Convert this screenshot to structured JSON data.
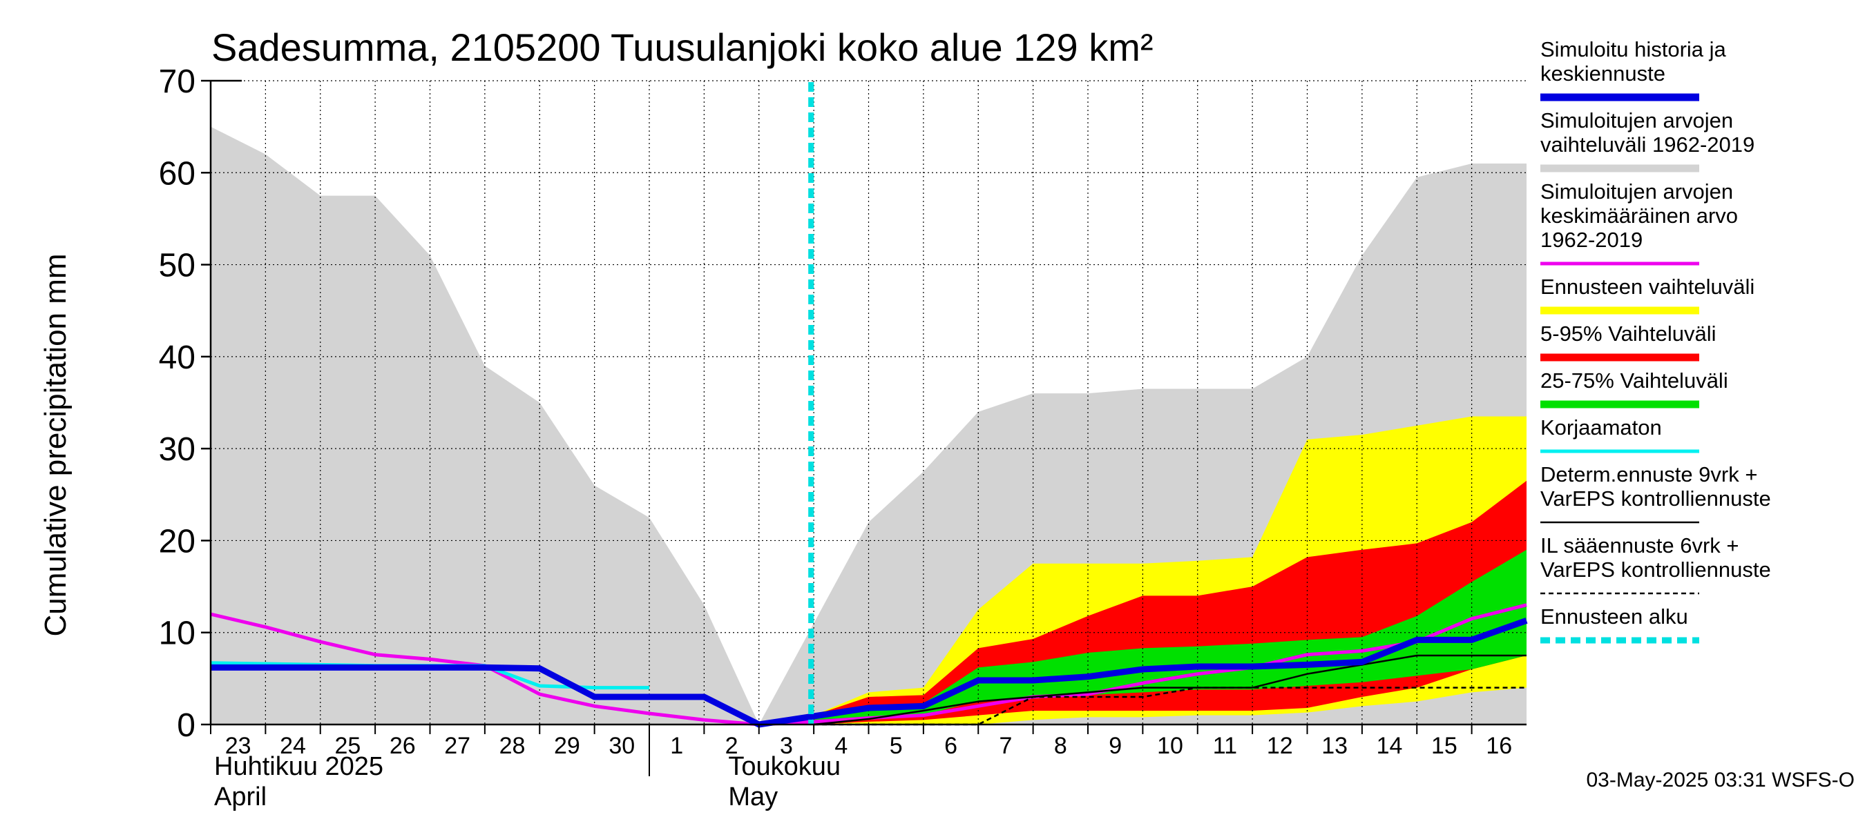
{
  "chart_data": {
    "type": "area",
    "title": "Sadesumma, 2105200 Tuusulanjoki koko alue 129 km²",
    "ylabel": "Cumulative precipitation   mm",
    "ylim": [
      0,
      70
    ],
    "yticks": [
      0,
      10,
      20,
      30,
      40,
      50,
      60,
      70
    ],
    "x_tick_labels": [
      "23",
      "24",
      "25",
      "26",
      "27",
      "28",
      "29",
      "30",
      "1",
      "2",
      "3",
      "4",
      "5",
      "6",
      "7",
      "8",
      "9",
      "10",
      "11",
      "12",
      "13",
      "14",
      "15",
      "16"
    ],
    "month_labels": [
      {
        "line1": "Huhtikuu  2025",
        "line2": "April"
      },
      {
        "line1": "Toukokuu",
        "line2": "May"
      }
    ],
    "forecast_start_day": 10.95,
    "footer": "03-May-2025 03:31 WSFS-O",
    "series": [
      {
        "name": "Simuloitujen arvojen vaihteluväli 1962-2019",
        "kind": "band",
        "color": "#d3d3d3",
        "x": [
          0,
          1,
          2,
          3,
          4,
          5,
          6,
          7,
          8,
          9,
          10,
          11,
          12,
          13,
          14,
          15,
          16,
          17,
          18,
          19,
          20,
          21,
          22,
          23,
          24
        ],
        "lower": [
          0,
          0,
          0,
          0,
          0,
          0,
          0,
          0,
          0,
          0,
          0,
          0,
          0,
          0,
          0,
          0,
          0,
          0,
          0,
          0,
          0,
          0,
          0,
          0,
          0
        ],
        "upper": [
          65,
          62,
          57.5,
          57.5,
          51,
          39,
          35,
          26,
          22.5,
          13,
          0,
          11,
          22,
          27.5,
          34,
          36,
          36,
          36.5,
          36.5,
          36.5,
          40,
          51,
          59.5,
          61,
          61
        ]
      },
      {
        "name": "Ennusteen vaihteluväli",
        "kind": "band",
        "color": "#ffff00",
        "x": [
          11,
          12,
          13,
          14,
          15,
          16,
          17,
          18,
          19,
          20,
          21,
          22,
          23,
          24
        ],
        "lower": [
          0,
          0,
          0,
          0,
          0.5,
          0.8,
          0.8,
          1,
          1,
          1.3,
          2,
          2.5,
          3.5,
          4
        ],
        "upper": [
          1,
          3.5,
          4,
          12.5,
          17.5,
          17.5,
          17.5,
          17.8,
          18.2,
          31,
          31.5,
          32.5,
          33.5,
          33.5
        ]
      },
      {
        "name": "5-95% Vaihteluväli",
        "kind": "band",
        "color": "#ff0000",
        "x": [
          11,
          12,
          13,
          14,
          15,
          16,
          17,
          18,
          19,
          20,
          21,
          22,
          23,
          24
        ],
        "lower": [
          0,
          0.3,
          0.5,
          1,
          1.5,
          1.5,
          1.5,
          1.5,
          1.5,
          1.8,
          3,
          4,
          6,
          7.5
        ],
        "upper": [
          1,
          3,
          3.2,
          8.3,
          9.3,
          11.8,
          14,
          14,
          15,
          18.2,
          19,
          19.7,
          22,
          26.5
        ]
      },
      {
        "name": "25-75% Vaihteluväli",
        "kind": "band",
        "color": "#00e000",
        "x": [
          11,
          12,
          13,
          14,
          15,
          16,
          17,
          18,
          19,
          20,
          21,
          22,
          23,
          24
        ],
        "lower": [
          0,
          0.8,
          1,
          2.6,
          3,
          3.2,
          3.5,
          3.8,
          3.8,
          4.2,
          4.6,
          5.3,
          6,
          7.5
        ],
        "upper": [
          0.8,
          2,
          2.3,
          6.2,
          6.8,
          7.8,
          8.3,
          8.5,
          8.8,
          9.2,
          9.5,
          11.8,
          15.5,
          19
        ]
      },
      {
        "name": "Simuloitujen arvojen keskimääräinen arvo 1962-2019",
        "kind": "line",
        "color": "#ee00ee",
        "x": [
          0,
          1,
          2,
          3,
          4,
          5,
          6,
          7,
          8,
          9,
          10,
          11,
          12,
          13,
          14,
          15,
          16,
          17,
          18,
          19,
          20,
          21,
          22,
          23,
          24
        ],
        "values": [
          12,
          10.6,
          9,
          7.6,
          7.1,
          6.4,
          3.3,
          2,
          1.2,
          0.5,
          0,
          0.3,
          0.7,
          1,
          2,
          3,
          3.3,
          4.5,
          5.5,
          6.2,
          7.6,
          8,
          9,
          11.5,
          13
        ]
      },
      {
        "name": "Korjaamaton",
        "kind": "line",
        "color": "#00f0f0",
        "x": [
          0,
          1,
          2,
          3,
          4,
          5,
          6,
          7,
          8
        ],
        "values": [
          6.7,
          6.6,
          6.5,
          6.4,
          6.4,
          6.4,
          4.2,
          4,
          4
        ]
      },
      {
        "name": "Determ.ennuste 9vrk + VarEPS kontrolliennuste",
        "kind": "line",
        "color": "#000000",
        "x": [
          11,
          12,
          13,
          14,
          15,
          16,
          17,
          18,
          19,
          20,
          21,
          22,
          23,
          24
        ],
        "values": [
          0,
          0.6,
          1.5,
          2.5,
          3,
          3.5,
          4,
          4,
          4,
          5.5,
          6.5,
          7.5,
          7.5,
          7.5
        ]
      },
      {
        "name": "IL sääennuste 6vrk  +   VarEPS kontrolliennuste",
        "kind": "dashed",
        "color": "#000000",
        "x": [
          11,
          12,
          13,
          14,
          15,
          16,
          17,
          18,
          19,
          20,
          21,
          22,
          23,
          24
        ],
        "values": [
          0,
          0,
          0,
          0,
          3,
          3,
          3,
          4,
          4,
          4,
          4,
          4,
          4,
          4
        ]
      },
      {
        "name": "Simuloitu historia ja keskiennuste",
        "kind": "line",
        "color": "#0000e0",
        "x": [
          0,
          1,
          2,
          3,
          4,
          5,
          6,
          7,
          8,
          9,
          10,
          11,
          12,
          13,
          14,
          15,
          16,
          17,
          18,
          19,
          20,
          21,
          22,
          23,
          24
        ],
        "values": [
          6.2,
          6.2,
          6.2,
          6.2,
          6.2,
          6.2,
          6.1,
          3,
          3,
          3,
          0,
          0.9,
          1.8,
          2,
          4.8,
          4.8,
          5.2,
          6,
          6.3,
          6.3,
          6.5,
          6.8,
          9.2,
          9.2,
          11.3
        ]
      }
    ]
  },
  "legend": [
    {
      "label_lines": [
        "Simuloitu historia ja",
        "keskiennuste"
      ],
      "color": "#0000e0",
      "style": "thick"
    },
    {
      "label_lines": [
        "Simuloitujen arvojen",
        "vaihteluväli 1962-2019"
      ],
      "color": "#d3d3d3",
      "style": "thick"
    },
    {
      "label_lines": [
        "Simuloitujen arvojen",
        "keskimääräinen arvo",
        "   1962-2019"
      ],
      "color": "#ee00ee",
      "style": "line"
    },
    {
      "label_lines": [
        "Ennusteen vaihteluväli"
      ],
      "color": "#ffff00",
      "style": "thick"
    },
    {
      "label_lines": [
        "5-95% Vaihteluväli"
      ],
      "color": "#ff0000",
      "style": "thick"
    },
    {
      "label_lines": [
        "25-75% Vaihteluväli"
      ],
      "color": "#00e000",
      "style": "thick"
    },
    {
      "label_lines": [
        "Korjaamaton"
      ],
      "color": "#00f0f0",
      "style": "line"
    },
    {
      "label_lines": [
        "Determ.ennuste 9vrk +",
        "VarEPS kontrolliennuste"
      ],
      "color": "#000000",
      "style": "thin"
    },
    {
      "label_lines": [
        "IL sääennuste 6vrk  +",
        "  VarEPS kontrolliennuste"
      ],
      "color": "#000000",
      "style": "dashed"
    },
    {
      "label_lines": [
        "Ennusteen alku"
      ],
      "color": "#00e0e0",
      "style": "dotted"
    }
  ]
}
